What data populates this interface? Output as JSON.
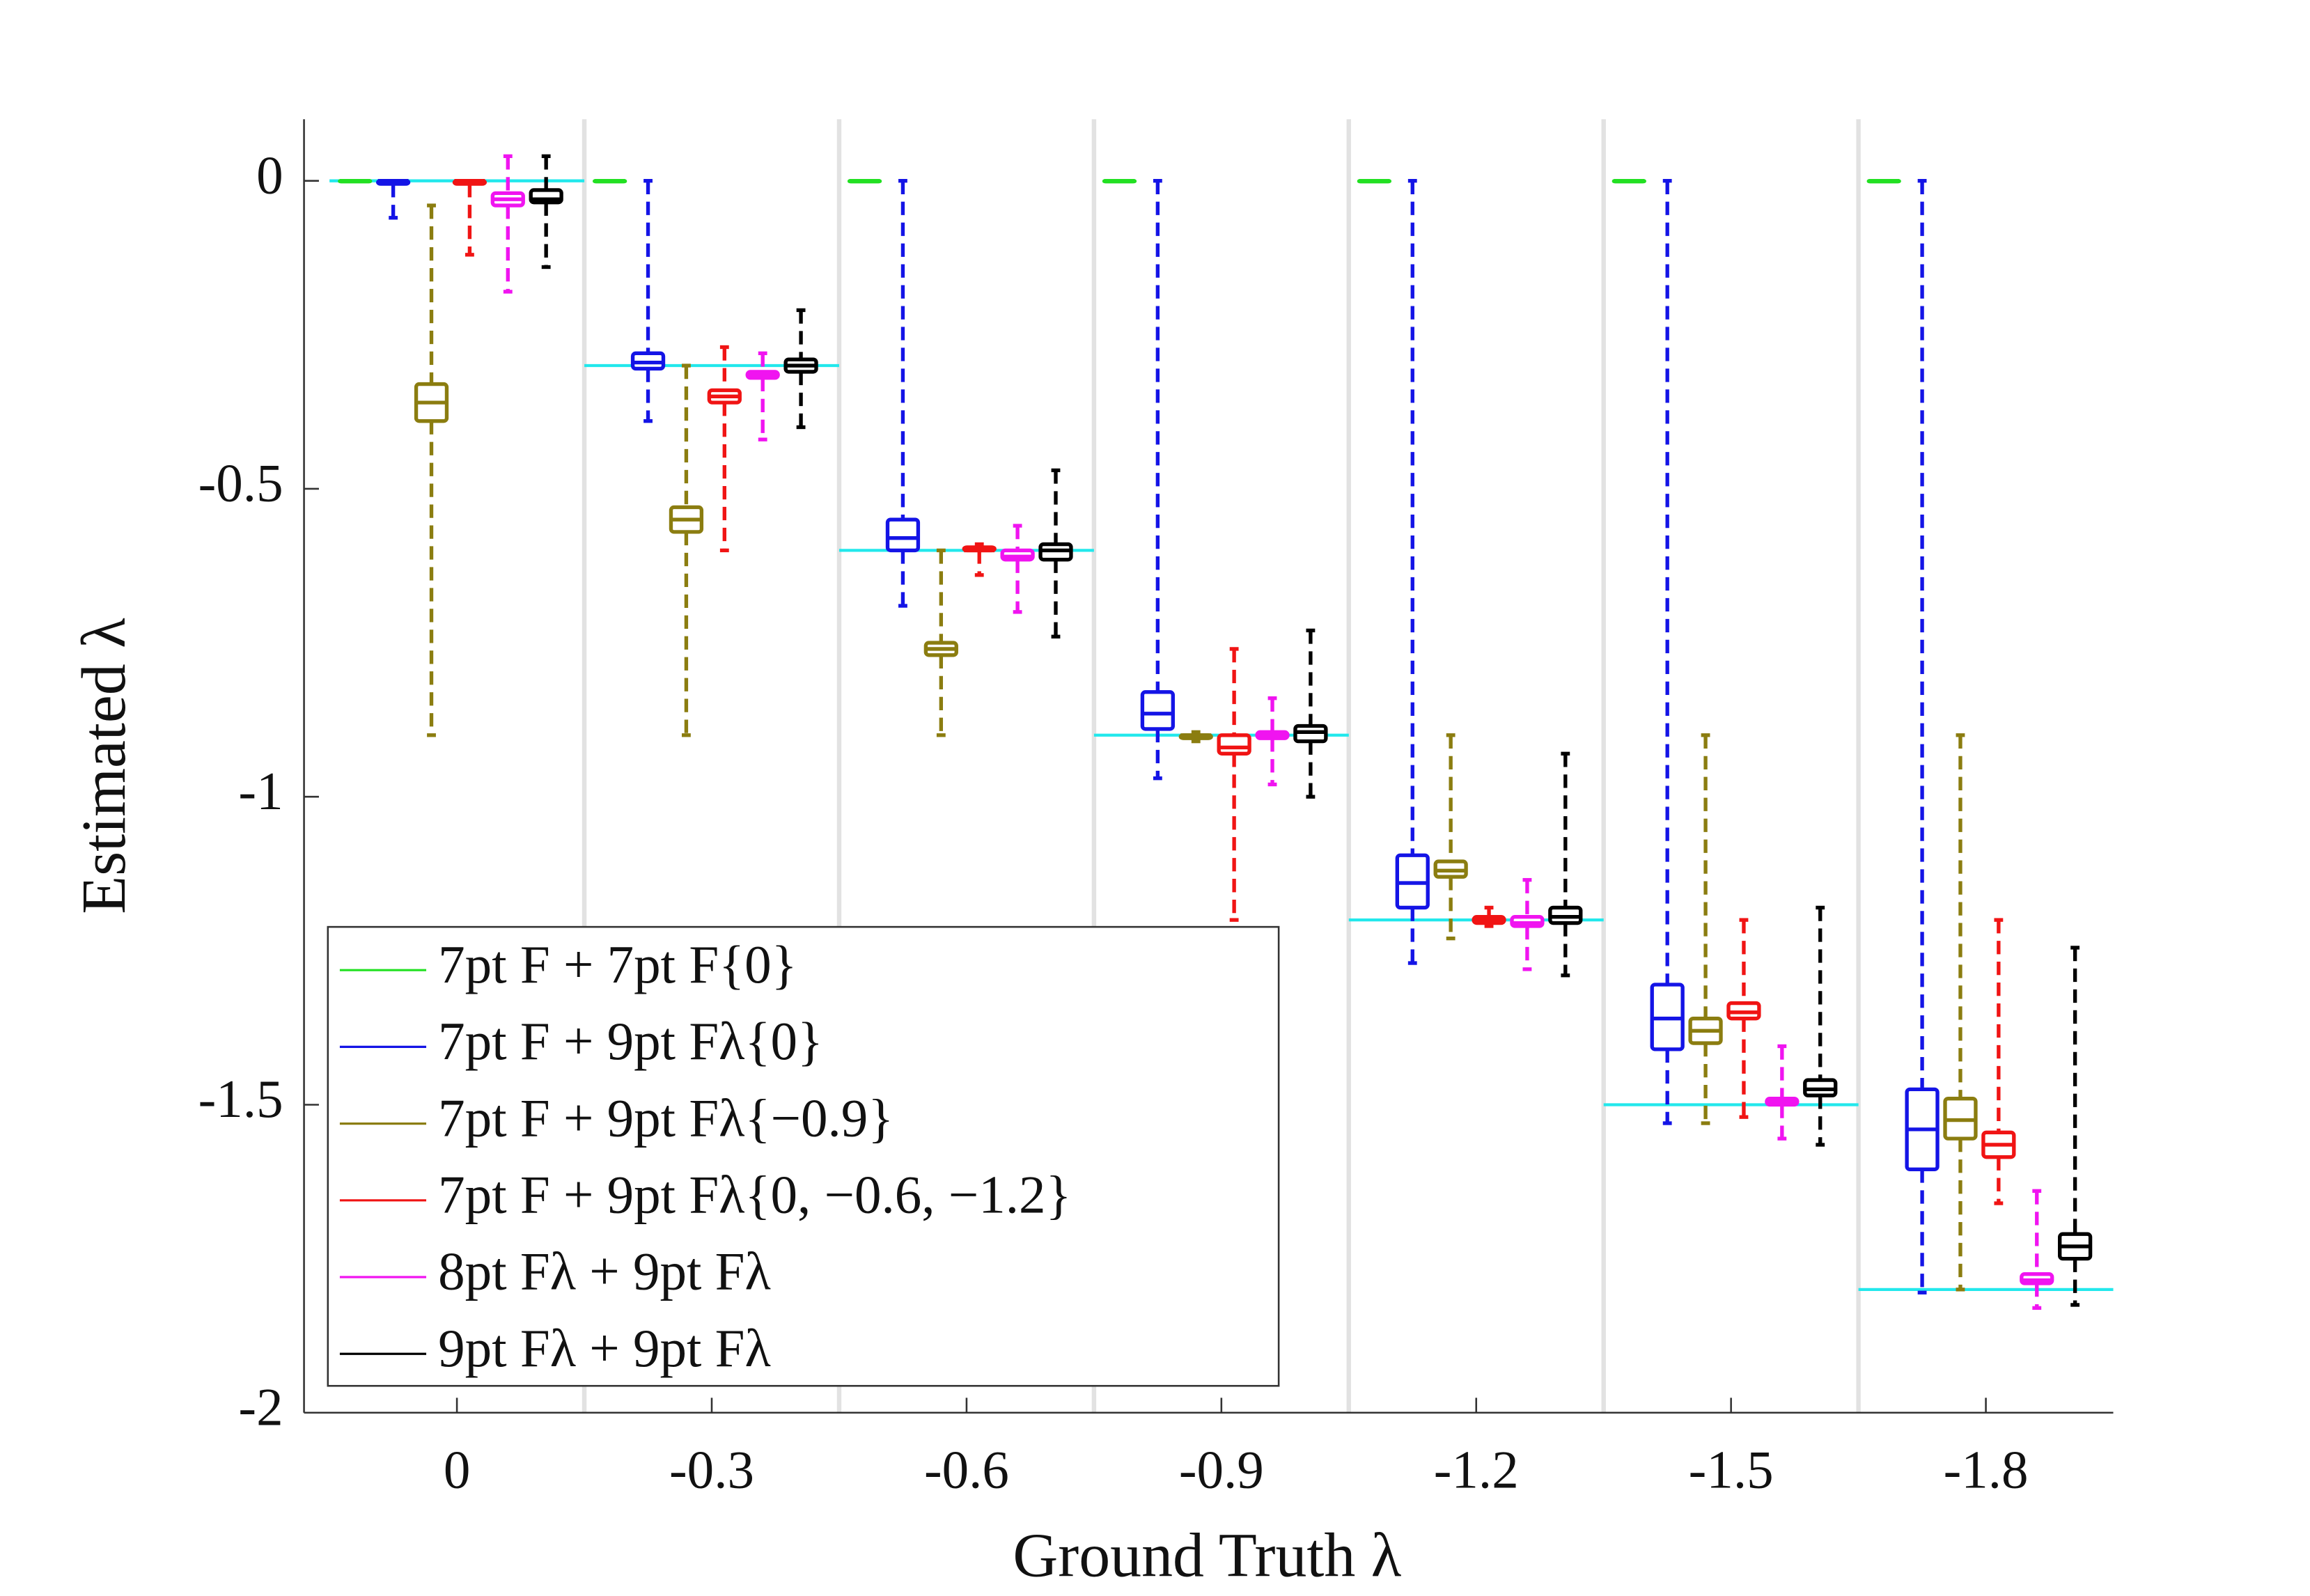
{
  "chart_data": {
    "type": "box",
    "xlabel": "Ground Truth λ",
    "ylabel": "Estimated λ",
    "categories": [
      "0",
      "-0.3",
      "-0.6",
      "-0.9",
      "-1.2",
      "-1.5",
      "-1.8"
    ],
    "reference_values": [
      0,
      -0.3,
      -0.6,
      -0.9,
      -1.2,
      -1.5,
      -1.8
    ],
    "reference_color": "#22e8ec",
    "ylim": [
      -2,
      0.1
    ],
    "yticks": [
      0,
      -0.5,
      -1,
      -1.5,
      -2
    ],
    "legend": "lower left",
    "series": [
      {
        "name": "7pt F + 7pt F{0}",
        "color": "#22e022",
        "low": [
          0,
          0,
          0,
          0,
          0,
          0,
          0
        ],
        "q1": [
          0,
          0,
          0,
          0,
          0,
          0,
          0
        ],
        "median": [
          0,
          0,
          0,
          0,
          0,
          0,
          0
        ],
        "q3": [
          0,
          0,
          0,
          0,
          0,
          0,
          0
        ],
        "high": [
          0,
          0,
          0,
          0,
          0,
          0,
          0
        ]
      },
      {
        "name": "7pt F + 9pt Fλ{0}",
        "color": "#1414e6",
        "low": [
          -0.06,
          -0.39,
          -0.69,
          -0.97,
          -1.27,
          -1.53,
          -1.805
        ],
        "q1": [
          -0.005,
          -0.305,
          -0.6,
          -0.89,
          -1.18,
          -1.41,
          -1.605
        ],
        "median": [
          0,
          -0.295,
          -0.58,
          -0.865,
          -1.14,
          -1.36,
          -1.54
        ],
        "q3": [
          0,
          -0.28,
          -0.55,
          -0.83,
          -1.095,
          -1.305,
          -1.475
        ],
        "high": [
          0,
          0,
          0,
          0,
          0,
          0,
          0
        ]
      },
      {
        "name": "7pt F + 9pt Fλ{−0.9}",
        "color": "#8b7d10",
        "low": [
          -0.9,
          -0.9,
          -0.9,
          -0.91,
          -1.23,
          -1.53,
          -1.8
        ],
        "q1": [
          -0.39,
          -0.57,
          -0.77,
          -0.905,
          -1.13,
          -1.4,
          -1.555
        ],
        "median": [
          -0.36,
          -0.55,
          -0.76,
          -0.9,
          -1.12,
          -1.38,
          -1.525
        ],
        "q3": [
          -0.33,
          -0.53,
          -0.75,
          -0.9,
          -1.105,
          -1.36,
          -1.49
        ],
        "high": [
          -0.04,
          -0.3,
          -0.6,
          -0.895,
          -0.9,
          -0.9,
          -0.9
        ]
      },
      {
        "name": "7pt F + 9pt Fλ{0, −0.6, −1.2}",
        "color": "#f01414",
        "low": [
          -0.12,
          -0.6,
          -0.64,
          -1.2,
          -1.21,
          -1.52,
          -1.66
        ],
        "q1": [
          -0.005,
          -0.36,
          -0.6,
          -0.93,
          -1.205,
          -1.36,
          -1.585
        ],
        "median": [
          0,
          -0.35,
          -0.6,
          -0.92,
          -1.2,
          -1.35,
          -1.565
        ],
        "q3": [
          0,
          -0.34,
          -0.595,
          -0.9,
          -1.195,
          -1.335,
          -1.545
        ],
        "high": [
          0,
          -0.27,
          -0.59,
          -0.76,
          -1.18,
          -1.2,
          -1.2
        ]
      },
      {
        "name": "8pt Fλ + 9pt Fλ",
        "color": "#f014f0",
        "low": [
          -0.18,
          -0.42,
          -0.7,
          -0.98,
          -1.28,
          -1.555,
          -1.83
        ],
        "q1": [
          -0.04,
          -0.32,
          -0.615,
          -0.905,
          -1.21,
          -1.5,
          -1.79
        ],
        "median": [
          -0.03,
          -0.315,
          -0.61,
          -0.9,
          -1.205,
          -1.495,
          -1.785
        ],
        "q3": [
          -0.02,
          -0.31,
          -0.6,
          -0.895,
          -1.195,
          -1.49,
          -1.775
        ],
        "high": [
          0.04,
          -0.28,
          -0.56,
          -0.84,
          -1.135,
          -1.405,
          -1.64
        ]
      },
      {
        "name": "9pt Fλ + 9pt Fλ",
        "color": "#000000",
        "low": [
          -0.14,
          -0.4,
          -0.74,
          -1.0,
          -1.29,
          -1.565,
          -1.825
        ],
        "q1": [
          -0.035,
          -0.31,
          -0.615,
          -0.91,
          -1.205,
          -1.485,
          -1.75
        ],
        "median": [
          -0.03,
          -0.3,
          -0.6,
          -0.895,
          -1.195,
          -1.475,
          -1.73
        ],
        "q3": [
          -0.015,
          -0.29,
          -0.59,
          -0.885,
          -1.18,
          -1.46,
          -1.71
        ],
        "high": [
          0.04,
          -0.21,
          -0.47,
          -0.73,
          -0.93,
          -1.18,
          -1.245
        ]
      }
    ]
  }
}
